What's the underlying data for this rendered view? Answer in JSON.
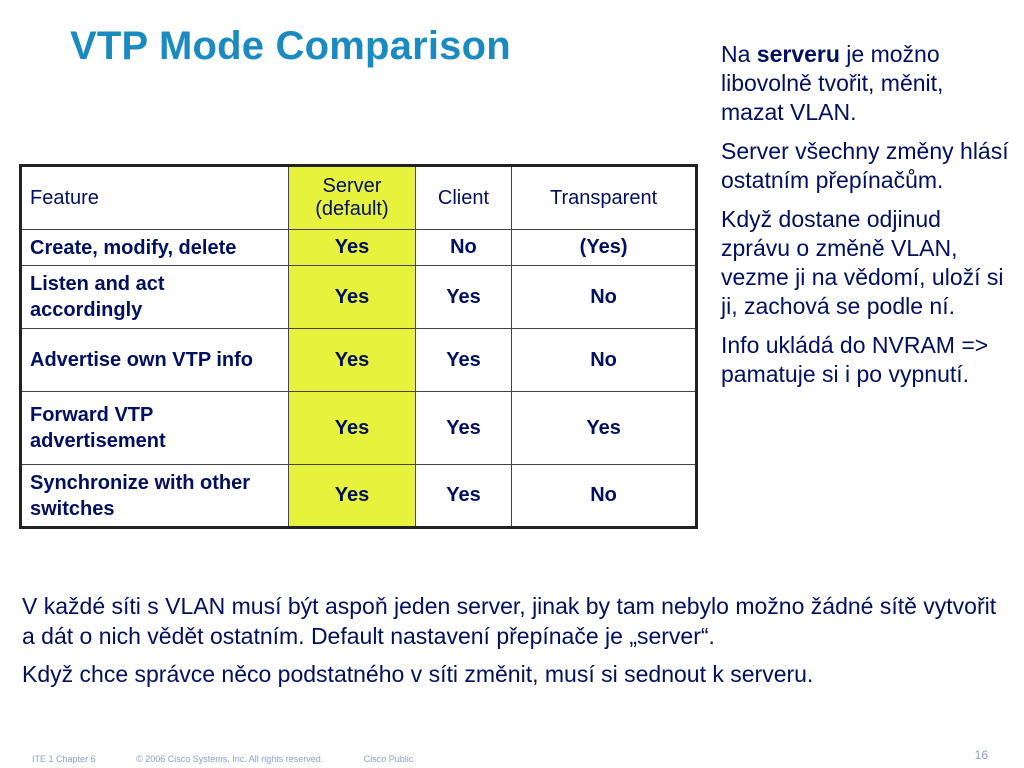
{
  "title": "VTP Mode Comparison",
  "side_notes": {
    "p1_prefix": "Na ",
    "p1_bold": "serveru",
    "p1_suffix": " je možno libovolně tvořit, měnit, mazat VLAN.",
    "p2": "Server všechny změny hlásí ostatním přepínačům.",
    "p3": "Když dostane odjinud zprávu o změně VLAN, vezme ji na vědomí, uloží si ji, zachová se podle ní.",
    "p4": "Info ukládá do NVRAM => pamatuje si i po vypnutí."
  },
  "table": {
    "headers": [
      "Feature",
      "Server (default)",
      "Client",
      "Transparent"
    ],
    "rows": [
      [
        "Create, modify, delete",
        "Yes",
        "No",
        "(Yes)"
      ],
      [
        "Listen and act accordingly",
        "Yes",
        "Yes",
        "No"
      ],
      [
        "Advertise own VTP info",
        "Yes",
        "Yes",
        "No"
      ],
      [
        "Forward VTP advertisement",
        "Yes",
        "Yes",
        "Yes"
      ],
      [
        "Synchronize with other switches",
        "Yes",
        "Yes",
        "No"
      ]
    ]
  },
  "bottom": {
    "p1": "V každé síti s VLAN musí být aspoň jeden server, jinak by tam nebylo možno žádné sítě vytvořit a dát o nich vědět ostatním. Default nastavení přepínače je „server“.",
    "p2": "Když chce správce něco podstatného v síti změnit, musí si sednout k serveru."
  },
  "footer": {
    "chapter": "ITE 1 Chapter 6",
    "copyright": "© 2006 Cisco Systems, Inc. All rights reserved.",
    "classification": "Cisco Public",
    "page": "16"
  },
  "colors": {
    "title": "#1a8ac1",
    "text": "#000f5e",
    "server_column": "#e6f23c"
  }
}
